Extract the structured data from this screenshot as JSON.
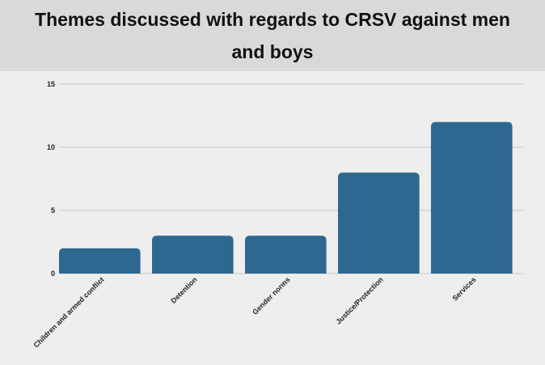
{
  "chart_data": {
    "type": "bar",
    "title": "Themes discussed with regards to CRSV against men and boys",
    "categories": [
      "Children and armed conflict",
      "Detention",
      "Gender norms",
      "Justice/Protection",
      "Services"
    ],
    "values": [
      2,
      3,
      3,
      8,
      12
    ],
    "ylim": [
      0,
      15
    ],
    "yticks": [
      0,
      5,
      10,
      15
    ],
    "grid": true,
    "colors": {
      "bar": "#2e6890",
      "grid": "#c8c8c8",
      "title_band": "#d9d9d9",
      "background": "#eeeeee"
    }
  }
}
